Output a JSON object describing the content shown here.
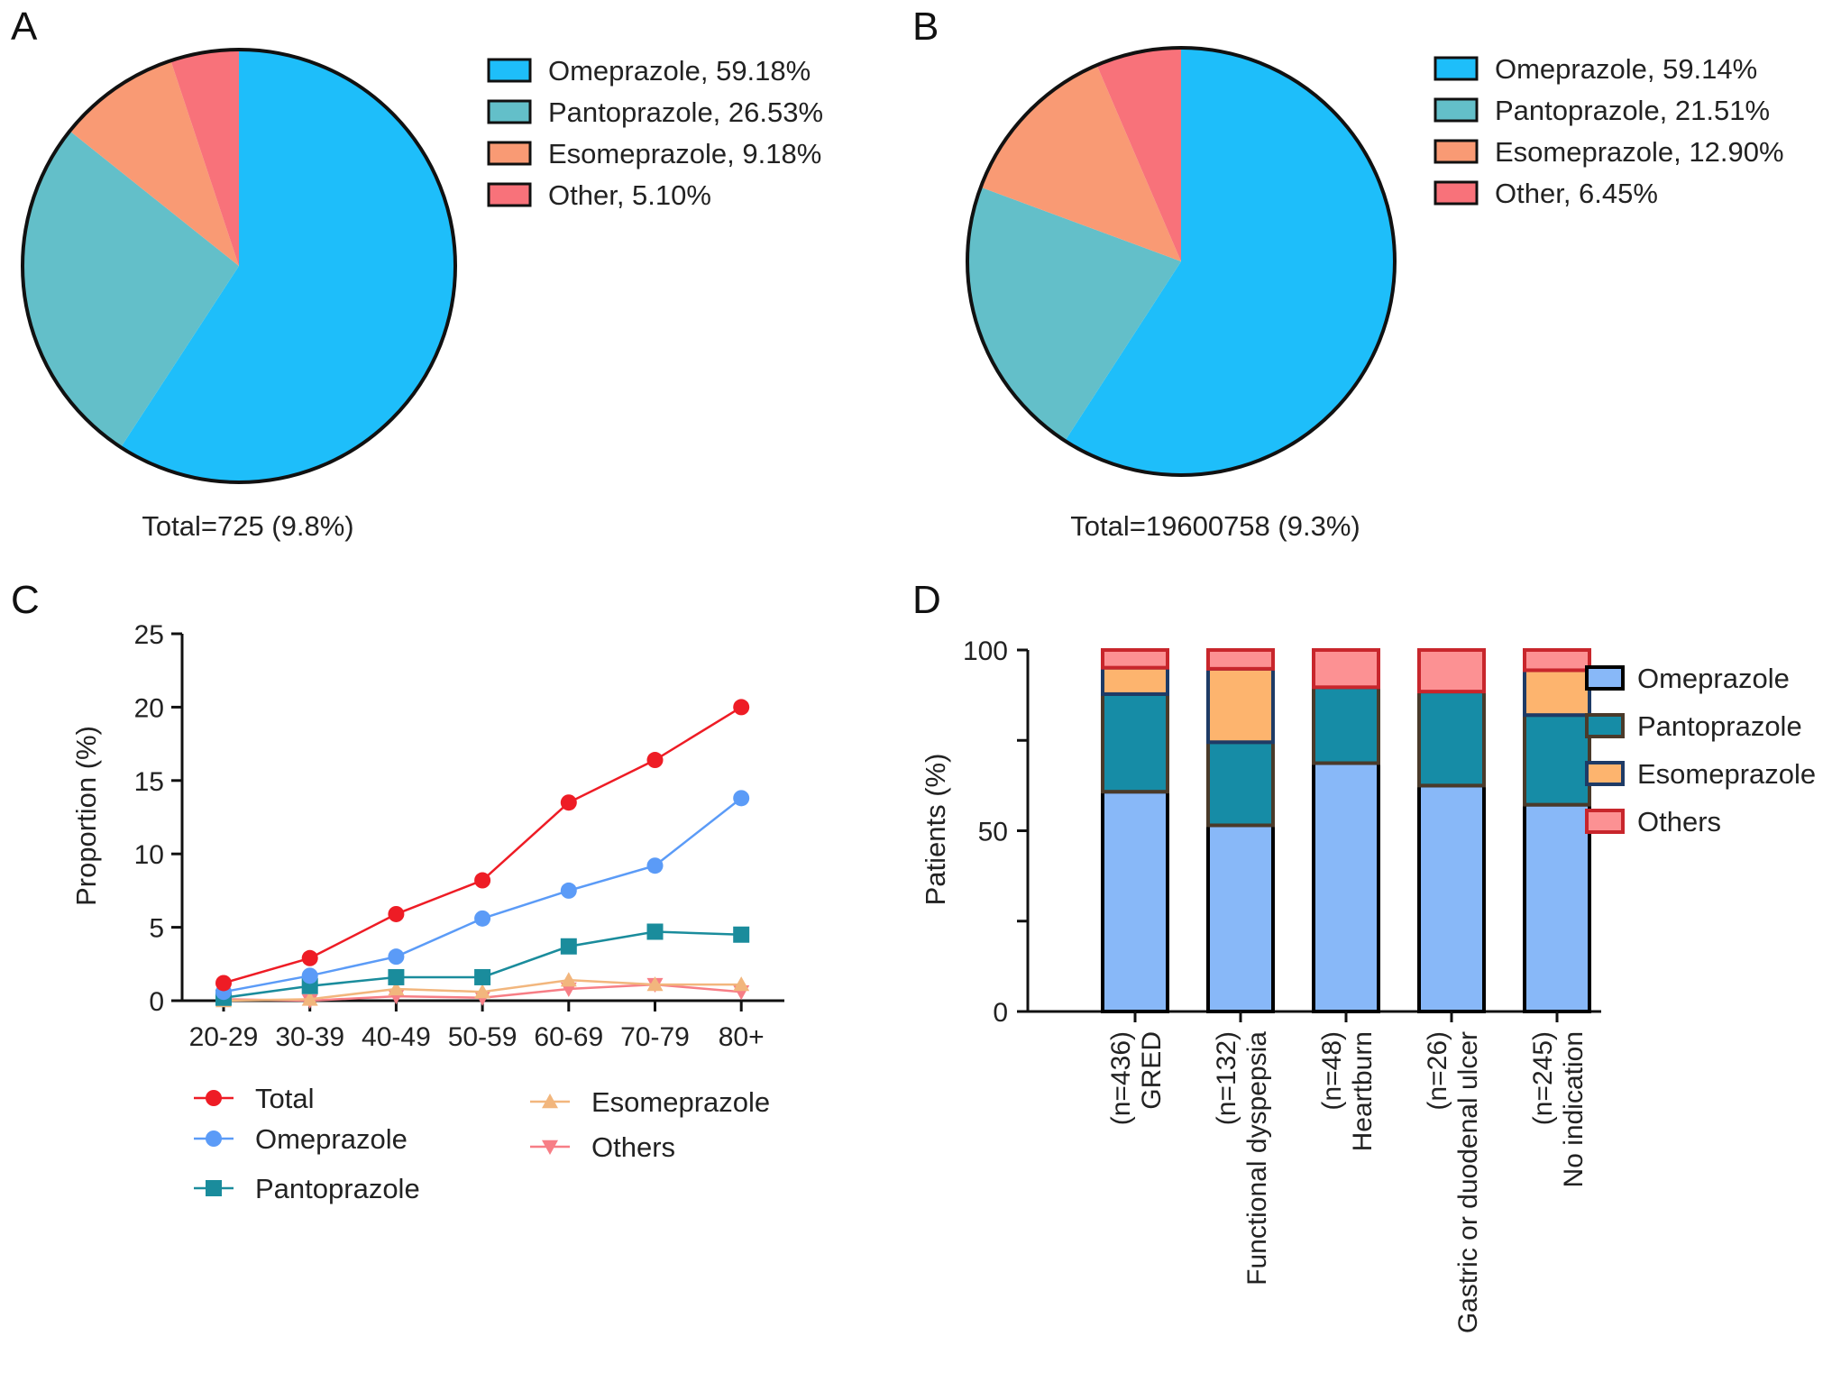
{
  "figure": {
    "panels": [
      "A",
      "B",
      "C",
      "D"
    ]
  },
  "chart_data": [
    {
      "panel": "A",
      "type": "pie",
      "start": "12 o'clock, clockwise",
      "slices": [
        {
          "label": "Omeprazole",
          "value": 59.18,
          "legend": "Omeprazole, 59.18%",
          "color": "#1EBEFA"
        },
        {
          "label": "Pantoprazole",
          "value": 26.53,
          "legend": "Pantoprazole, 26.53%",
          "color": "#63BFC9"
        },
        {
          "label": "Esomeprazole",
          "value": 9.18,
          "legend": "Esomeprazole, 9.18%",
          "color": "#F99A74"
        },
        {
          "label": "Other",
          "value": 5.1,
          "legend": "Other, 5.10%",
          "color": "#F8727A"
        }
      ],
      "caption": "Total=725 (9.8%)",
      "legend_position": "right"
    },
    {
      "panel": "B",
      "type": "pie",
      "start": "12 o'clock, clockwise",
      "slices": [
        {
          "label": "Omeprazole",
          "value": 59.14,
          "legend": "Omeprazole, 59.14%",
          "color": "#1EBEFA"
        },
        {
          "label": "Pantoprazole",
          "value": 21.51,
          "legend": "Pantoprazole, 21.51%",
          "color": "#63BFC9"
        },
        {
          "label": "Esomeprazole",
          "value": 12.9,
          "legend": "Esomeprazole, 12.90%",
          "color": "#F99A74"
        },
        {
          "label": "Other",
          "value": 6.45,
          "legend": "Other, 6.45%",
          "color": "#F8727A"
        }
      ],
      "caption": "Total=19600758 (9.3%)",
      "legend_position": "right"
    },
    {
      "panel": "C",
      "type": "line",
      "categories": [
        "20-29",
        "30-39",
        "40-49",
        "50-59",
        "60-69",
        "70-79",
        "80+"
      ],
      "ylabel": "Proportion (%)",
      "xlabel": "",
      "ylim": [
        0,
        25
      ],
      "yticks": [
        "0",
        "5",
        "10",
        "15",
        "20",
        "25"
      ],
      "series": [
        {
          "name": "Total",
          "marker": "circle",
          "color": "#EE1C25",
          "values": [
            1.2,
            2.9,
            5.9,
            8.2,
            13.5,
            16.4,
            20.0
          ]
        },
        {
          "name": "Omeprazole",
          "marker": "circle",
          "color": "#5B9BF7",
          "values": [
            0.6,
            1.7,
            3.0,
            5.6,
            7.5,
            9.2,
            13.8
          ]
        },
        {
          "name": "Pantoprazole",
          "marker": "square",
          "color": "#1A8C9C",
          "values": [
            0.2,
            1.0,
            1.6,
            1.6,
            3.7,
            4.7,
            4.5
          ]
        },
        {
          "name": "Esomeprazole",
          "marker": "triangle-up",
          "color": "#F2B67D",
          "values": [
            0.0,
            0.1,
            0.8,
            0.6,
            1.4,
            1.1,
            1.1
          ]
        },
        {
          "name": "Others",
          "marker": "triangle-down",
          "color": "#F77E86",
          "values": [
            0.1,
            0.0,
            0.3,
            0.2,
            0.8,
            1.1,
            0.6
          ]
        }
      ],
      "legend_position": "bottom",
      "grid": false
    },
    {
      "panel": "D",
      "type": "bar",
      "stacked": true,
      "categories": [
        {
          "n": "(n=436)",
          "name": "GRED"
        },
        {
          "n": "(n=132)",
          "name": "Functional dyspepsia"
        },
        {
          "n": "(n=48)",
          "name": "Heartburn"
        },
        {
          "n": "(n=26)",
          "name": "Gastric or duodenal ulcer"
        },
        {
          "n": "(n=245)",
          "name": "No indication"
        }
      ],
      "ylabel": "Patients (%)",
      "ylim": [
        0,
        100
      ],
      "yticks": [
        "0",
        "50",
        "100"
      ],
      "series": [
        {
          "name": "Omeprazole",
          "color": "#88B8F8",
          "edge": "#000000",
          "values": [
            60.8,
            51.5,
            68.7,
            62.5,
            57.2
          ]
        },
        {
          "name": "Pantoprazole",
          "color": "#168CA6",
          "edge": "#4A3A2A",
          "values": [
            27.0,
            23.0,
            21.0,
            26.0,
            24.8
          ]
        },
        {
          "name": "Esomeprazole",
          "color": "#FDB46E",
          "edge": "#1E3B66",
          "values": [
            7.3,
            20.3,
            0.0,
            0.0,
            12.4
          ]
        },
        {
          "name": "Others",
          "color": "#FC9193",
          "edge": "#C8262C",
          "values": [
            4.9,
            5.2,
            10.3,
            11.5,
            5.6
          ]
        }
      ],
      "legend_position": "right",
      "grid": false
    }
  ]
}
